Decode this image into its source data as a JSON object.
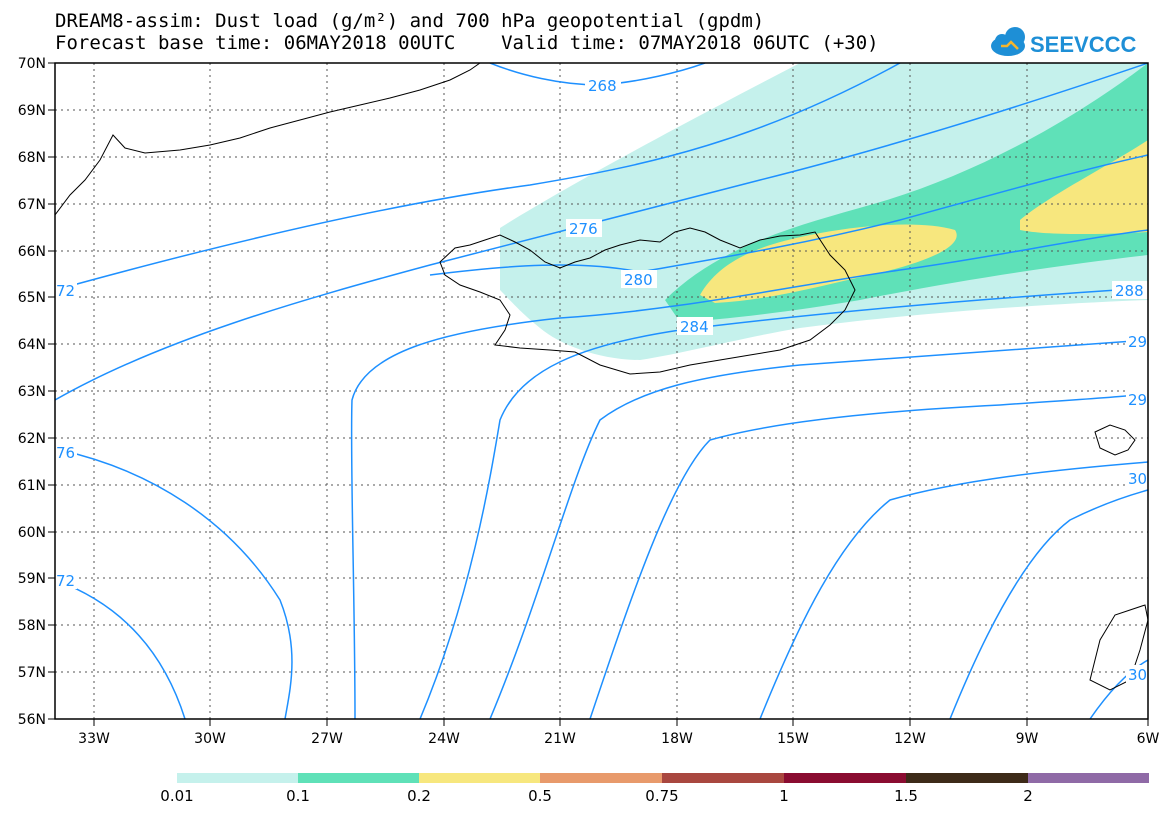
{
  "header": {
    "title_line1": "DREAM8-assim: Dust load (g/m²) and 700 hPa geopotential (gpdm)",
    "title_line2": "Forecast base time: 06MAY2018 00UTC    Valid time: 07MAY2018 06UTC (+30)"
  },
  "logo": {
    "text": "SEEVCCC",
    "icon": "cloud-icon",
    "color": "#1e8fd6"
  },
  "map": {
    "lat_labels": [
      "70N",
      "69N",
      "68N",
      "67N",
      "66N",
      "65N",
      "64N",
      "63N",
      "62N",
      "61N",
      "60N",
      "59N",
      "58N",
      "57N",
      "56N"
    ],
    "lon_labels": [
      "33W",
      "30W",
      "27W",
      "24W",
      "21W",
      "18W",
      "15W",
      "12W",
      "9W",
      "6W"
    ],
    "contour_labels": [
      "268",
      "276",
      "280",
      "284",
      "288",
      "72",
      "76",
      "72",
      "29",
      "29",
      "30",
      "30"
    ],
    "colors": {
      "contour": "#1e90ff",
      "coast": "#000000"
    }
  },
  "colorbar": {
    "labels": [
      "0.01",
      "0.1",
      "0.2",
      "0.5",
      "0.75",
      "1",
      "1.5",
      "2"
    ],
    "colors": [
      "#c5f1ec",
      "#5fe1b8",
      "#f7e77e",
      "#e89a6b",
      "#a9473f",
      "#8a0c31",
      "#3d2a18",
      "#8f6aa6"
    ]
  }
}
